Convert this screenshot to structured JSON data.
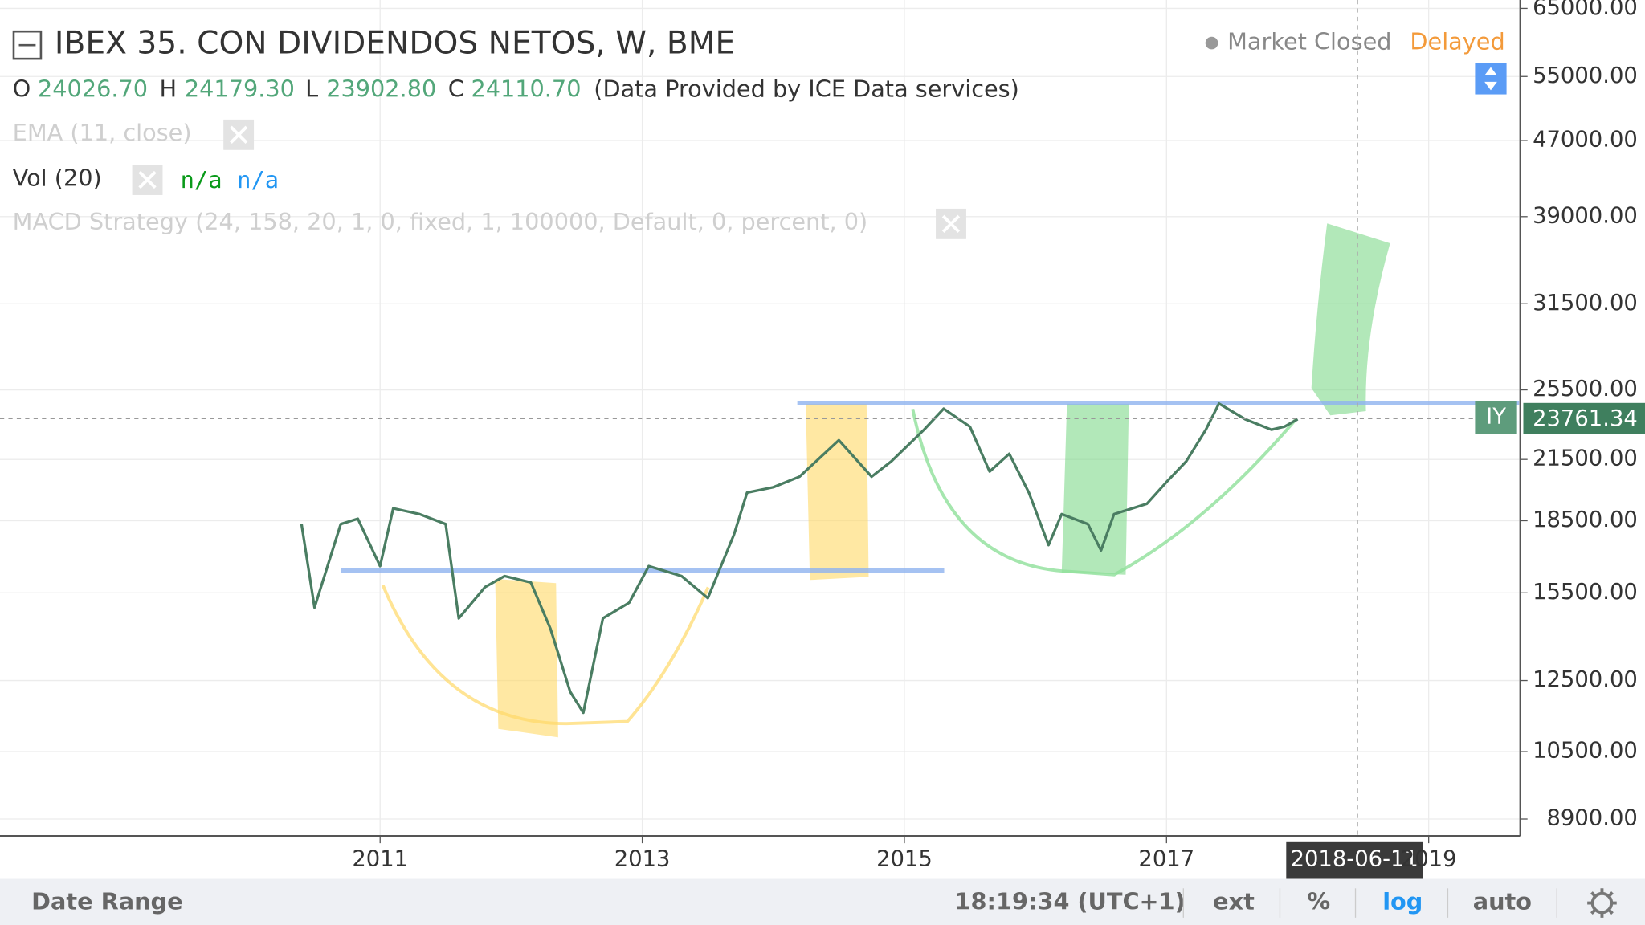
{
  "header": {
    "title": "IBEX 35. CON DIVIDENDOS NETOS, W, BME",
    "status": "Market Closed",
    "delay": "Delayed",
    "ohlc": [
      {
        "label": "O",
        "value": "24026.70"
      },
      {
        "label": "H",
        "value": "24179.30"
      },
      {
        "label": "L",
        "value": "23902.80"
      },
      {
        "label": "C",
        "value": "24110.70"
      }
    ],
    "source": "(Data Provided by ICE Data services)"
  },
  "indicators": {
    "ema": "EMA (11, close)",
    "vol": "Vol (20)",
    "vol_values": [
      "n/a",
      "n/a"
    ],
    "macd": "MACD Strategy (24, 158, 20, 1, 0, fixed, 1, 100000, Default, 0, percent, 0)"
  },
  "chart_data": {
    "type": "line",
    "log_scale": true,
    "grid": true,
    "color": "#4a7d62",
    "x": [
      2010.4,
      2010.5,
      2010.7,
      2010.83,
      2011.0,
      2011.1,
      2011.3,
      2011.5,
      2011.6,
      2011.8,
      2011.95,
      2012.15,
      2012.3,
      2012.45,
      2012.55,
      2012.7,
      2012.9,
      2013.05,
      2013.3,
      2013.5,
      2013.7,
      2013.8,
      2014.0,
      2014.2,
      2014.5,
      2014.75,
      2014.9,
      2015.15,
      2015.3,
      2015.5,
      2015.65,
      2015.8,
      2015.95,
      2016.1,
      2016.2,
      2016.4,
      2016.5,
      2016.6,
      2016.85,
      2017.0,
      2017.15,
      2017.3,
      2017.4,
      2017.6,
      2017.8,
      2017.9,
      2018.0
    ],
    "values": [
      18350,
      14950,
      18350,
      18590,
      16550,
      19070,
      18800,
      18350,
      14560,
      15720,
      16150,
      15900,
      14190,
      12160,
      11550,
      14560,
      15130,
      16550,
      16150,
      15300,
      17880,
      19820,
      20080,
      20610,
      22540,
      20610,
      21400,
      23130,
      24350,
      23300,
      20870,
      21800,
      19820,
      17430,
      18800,
      18350,
      17200,
      18800,
      19280,
      20340,
      21400,
      23130,
      24660,
      23730,
      23130,
      23300,
      23730
    ],
    "xlim": [
      2008.1,
      2019.69
    ],
    "xticks": [
      2011,
      2013,
      2015,
      2017,
      2019
    ],
    "ylim": [
      8540,
      66350
    ],
    "yticks": [
      {
        "value": 8900,
        "label": "8900.00"
      },
      {
        "value": 10500,
        "label": "10500.00"
      },
      {
        "value": 12500,
        "label": "12500.00"
      },
      {
        "value": 15500,
        "label": "15500.00"
      },
      {
        "value": 18500,
        "label": "18500.00"
      },
      {
        "value": 21500,
        "label": "21500.00"
      },
      {
        "value": 25500,
        "label": "25500.00"
      },
      {
        "value": 31500,
        "label": "31500.00"
      },
      {
        "value": 39000,
        "label": "39000.00"
      },
      {
        "value": 47000,
        "label": "47000.00"
      },
      {
        "value": 55000,
        "label": "55000.00"
      },
      {
        "value": 65000,
        "label": "65000.00"
      }
    ],
    "last_price": 23761.34,
    "symbol_badge": "IY",
    "crosshair_date": "2018-06-11"
  },
  "toolbar": {
    "date_range": "Date Range",
    "clock": "18:19:34 (UTC+1)",
    "buttons": [
      "ext",
      "%",
      "log",
      "auto"
    ]
  }
}
